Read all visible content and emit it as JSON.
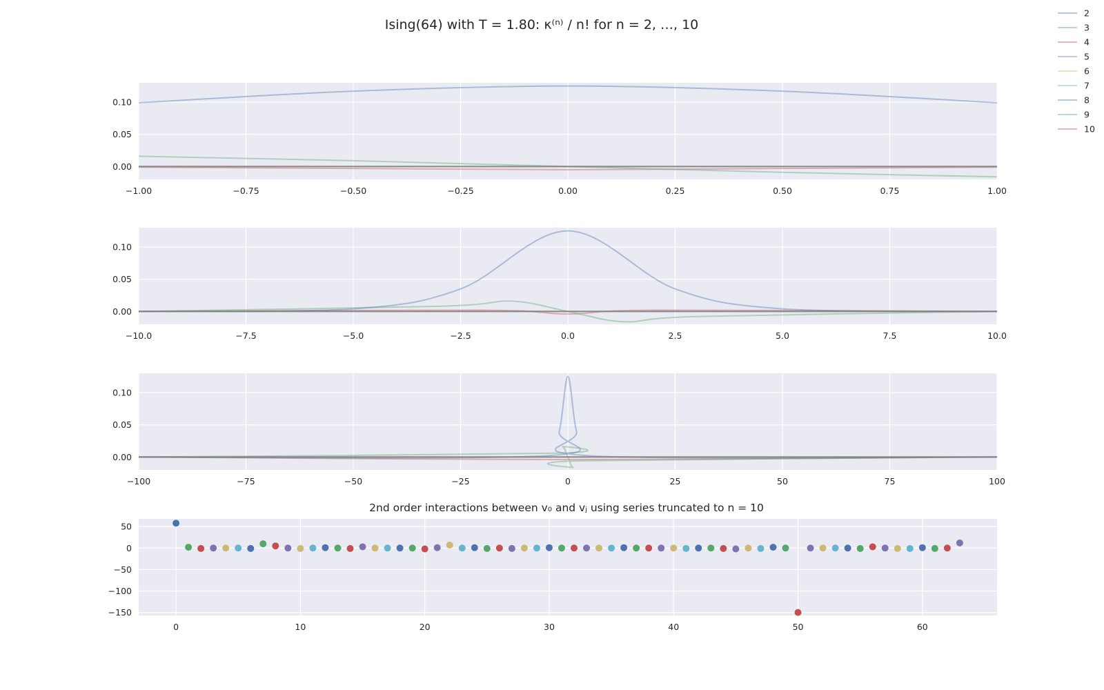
{
  "figure": {
    "title": "Ising(64) with T = 1.80: κ⁽ⁿ⁾ / n! for n = 2, …, 10",
    "legend_entries": [
      "2",
      "3",
      "4",
      "5",
      "6",
      "7",
      "8",
      "9",
      "10"
    ],
    "legend_placement": "top-right",
    "style": "seaborn-darkgrid",
    "colors": {
      "panel_background": "#eaeaf2",
      "grid": "#ffffff",
      "series": [
        "#4c72b0",
        "#55a868",
        "#c44e52",
        "#8172b2",
        "#ccb974",
        "#64b5cd",
        "#4c72b0",
        "#55a868",
        "#c44e52"
      ],
      "bias": "#808080"
    }
  },
  "chart_data": [
    {
      "type": "line",
      "xlim": [
        -1,
        1
      ],
      "ylim": [
        -0.02,
        0.13
      ],
      "xticks": [
        "−1.00",
        "−0.75",
        "−0.50",
        "−0.25",
        "0.00",
        "0.25",
        "0.50",
        "0.75",
        "1.00"
      ],
      "yticks": [
        "0.10",
        "0.05",
        "0.00"
      ],
      "grid": true,
      "series": [
        {
          "name": "2",
          "x": [
            -1,
            -0.5,
            0,
            0.5,
            1
          ],
          "y": [
            0.099,
            0.117,
            0.125,
            0.117,
            0.099
          ]
        },
        {
          "name": "3",
          "x": [
            -1,
            -0.5,
            0,
            0.5,
            1
          ],
          "y": [
            0.016,
            0.009,
            0.0,
            -0.009,
            -0.016
          ]
        },
        {
          "name": "4",
          "x": [
            -1,
            -0.5,
            0,
            0.5,
            1
          ],
          "y": [
            -0.001,
            -0.003,
            -0.005,
            -0.003,
            -0.001
          ]
        }
      ]
    },
    {
      "type": "line",
      "xlim": [
        -10,
        10
      ],
      "ylim": [
        -0.02,
        0.13
      ],
      "xticks": [
        "−10.0",
        "−7.5",
        "−5.0",
        "−2.5",
        "0.0",
        "2.5",
        "5.0",
        "7.5",
        "10.0"
      ],
      "yticks": [
        "0.10",
        "0.05",
        "0.00"
      ],
      "grid": true,
      "series": [
        {
          "name": "2",
          "x": [
            -10,
            -5,
            -2.5,
            0,
            2.5,
            5,
            10
          ],
          "y": [
            0.0,
            0.004,
            0.035,
            0.125,
            0.035,
            0.004,
            0.0
          ]
        },
        {
          "name": "3",
          "x": [
            -10,
            -3,
            -1.3,
            0,
            1.3,
            3,
            10
          ],
          "y": [
            0.0,
            0.008,
            0.016,
            0.0,
            -0.016,
            -0.008,
            0.0
          ]
        },
        {
          "name": "4",
          "x": [
            -10,
            -2,
            0,
            2,
            10
          ],
          "y": [
            0.0,
            0.002,
            -0.004,
            0.002,
            0.0
          ]
        }
      ]
    },
    {
      "type": "line",
      "xlim": [
        -100,
        100
      ],
      "ylim": [
        -0.02,
        0.13
      ],
      "xticks": [
        "−100",
        "−75",
        "−50",
        "−25",
        "0",
        "25",
        "50",
        "75",
        "100"
      ],
      "yticks": [
        "0.10",
        "0.05",
        "0.00"
      ],
      "grid": true,
      "series": [
        {
          "name": "2",
          "x": [
            -100,
            -5,
            -2,
            0,
            2,
            5,
            100
          ],
          "y": [
            0.0,
            0.002,
            0.04,
            0.125,
            0.04,
            0.002,
            0.0
          ]
        },
        {
          "name": "3",
          "x": [
            -100,
            -3,
            -1.2,
            0,
            1.2,
            3,
            100
          ],
          "y": [
            0.0,
            0.006,
            0.016,
            0.0,
            -0.016,
            -0.006,
            0.0
          ]
        },
        {
          "name": "4",
          "x": [
            -100,
            0,
            100
          ],
          "y": [
            0.0,
            -0.004,
            0.0
          ]
        }
      ]
    },
    {
      "type": "scatter",
      "title": "2nd order interactions between v₀ and vⱼ using series truncated to n = 10",
      "xlim": [
        -3,
        66
      ],
      "ylim": [
        -157,
        68
      ],
      "xticks": [
        "0",
        "10",
        "20",
        "30",
        "40",
        "50",
        "60"
      ],
      "yticks": [
        "50",
        "0",
        "−50",
        "−100",
        "−150"
      ],
      "grid": true,
      "x": [
        0,
        1,
        2,
        3,
        4,
        5,
        6,
        7,
        8,
        9,
        10,
        11,
        12,
        13,
        14,
        15,
        16,
        17,
        18,
        19,
        20,
        21,
        22,
        23,
        24,
        25,
        26,
        27,
        28,
        29,
        30,
        31,
        32,
        33,
        34,
        35,
        36,
        37,
        38,
        39,
        40,
        41,
        42,
        43,
        44,
        45,
        46,
        47,
        48,
        49,
        50,
        51,
        52,
        53,
        54,
        55,
        56,
        57,
        58,
        59,
        60,
        61,
        62,
        63
      ],
      "y": [
        58,
        2,
        -1,
        0,
        0,
        0,
        -1,
        10,
        5,
        0,
        -1,
        0,
        1,
        0,
        -1,
        3,
        0,
        0,
        0,
        0,
        -2,
        1,
        7,
        0,
        1,
        -1,
        0,
        -1,
        0,
        0,
        1,
        0,
        0,
        0,
        0,
        0,
        1,
        0,
        0,
        0,
        0,
        -1,
        0,
        0,
        -1,
        -2,
        0,
        -1,
        2,
        0,
        -150,
        0,
        0,
        0,
        0,
        -1,
        3,
        0,
        -1,
        -1,
        1,
        -1,
        0,
        12
      ]
    }
  ]
}
